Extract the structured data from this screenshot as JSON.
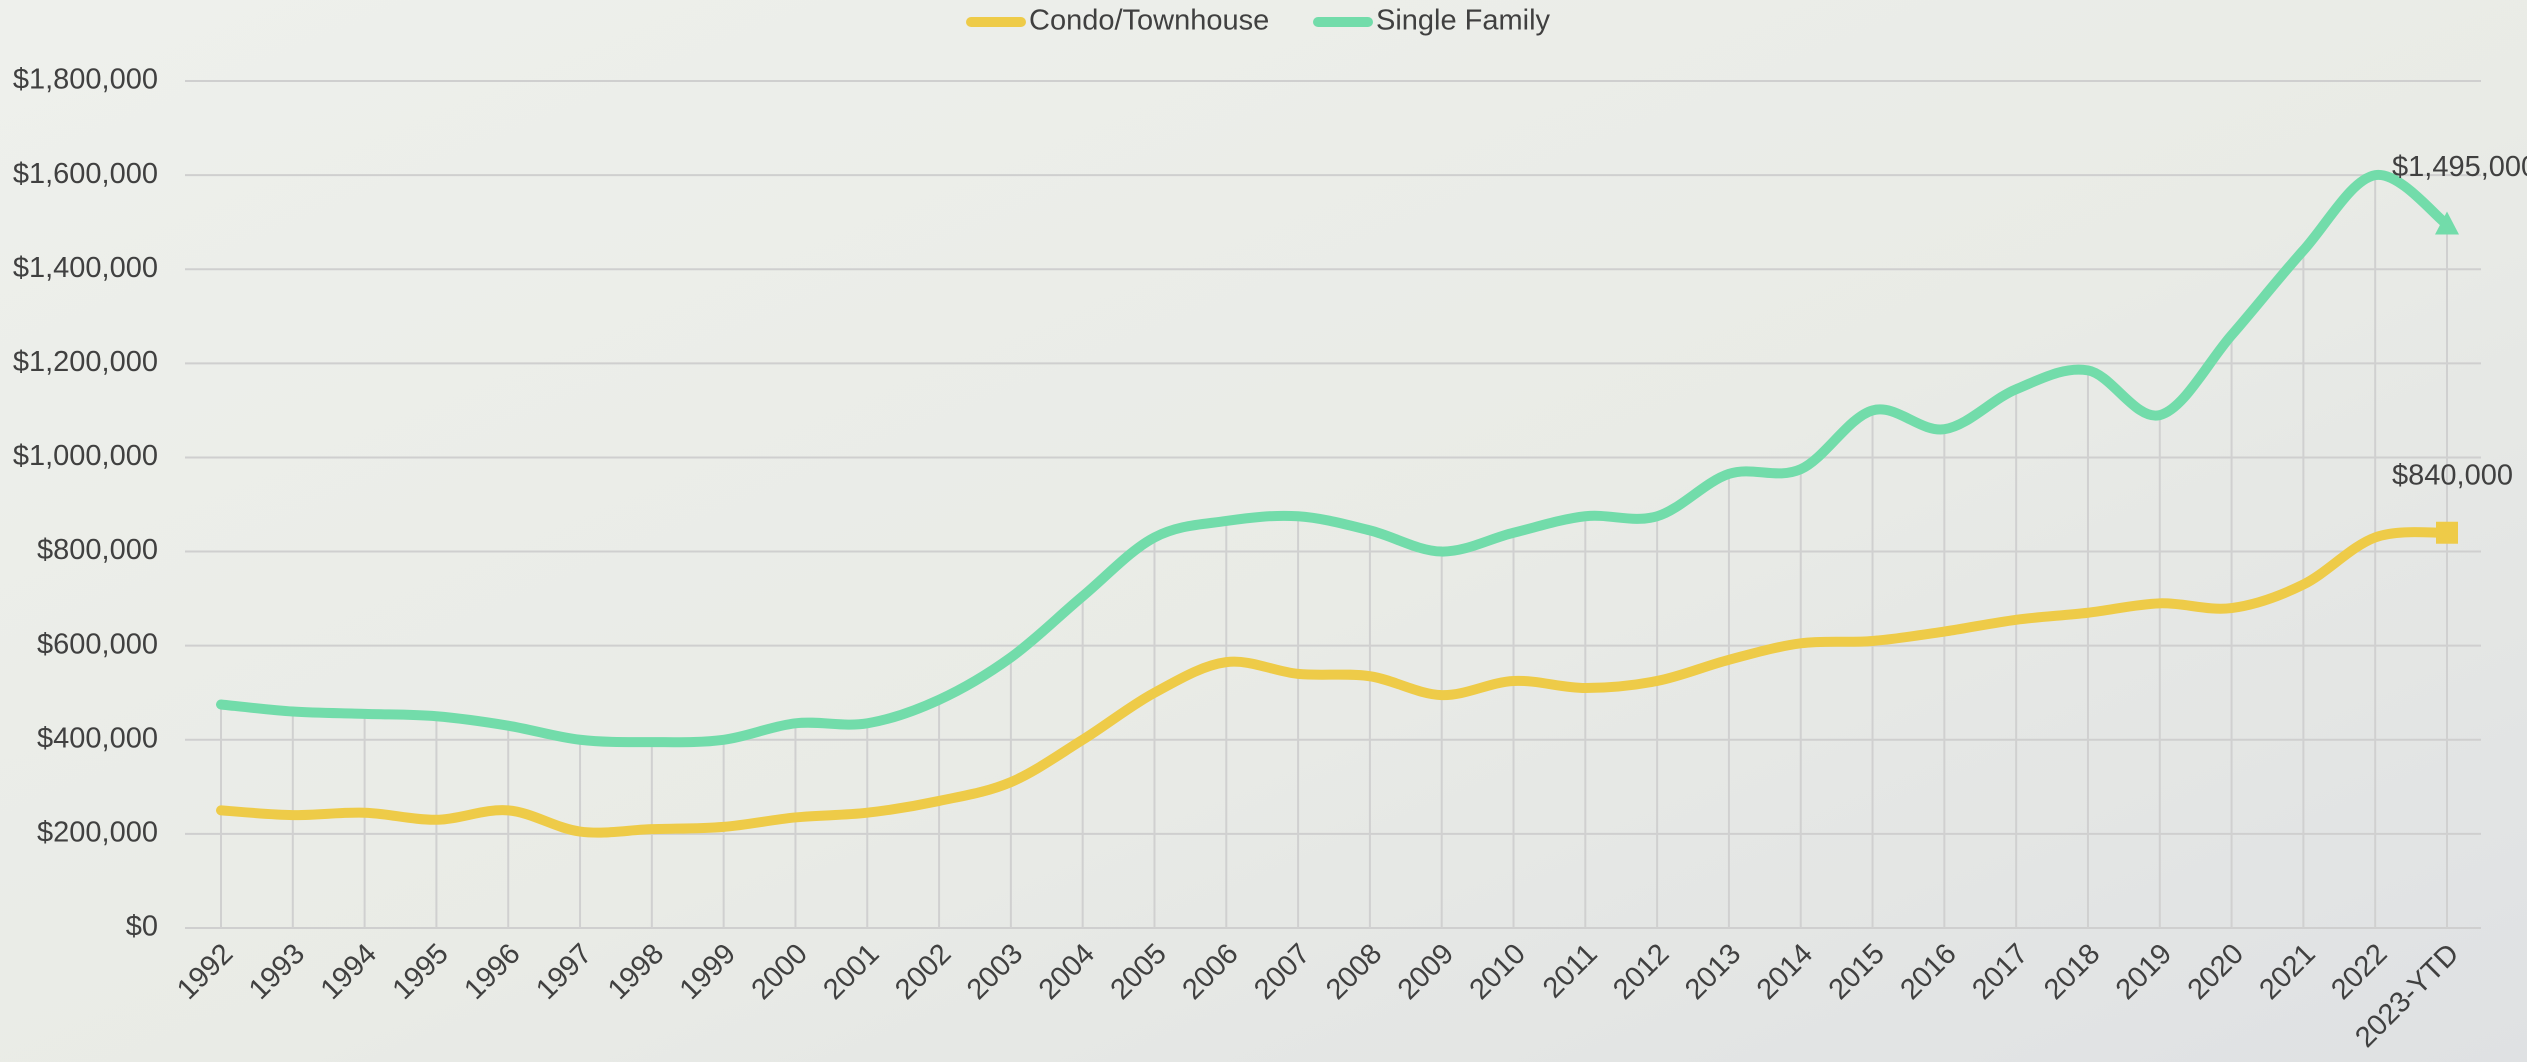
{
  "chart_data": {
    "type": "line",
    "categories": [
      "1992",
      "1993",
      "1994",
      "1995",
      "1996",
      "1997",
      "1998",
      "1999",
      "2000",
      "2001",
      "2002",
      "2003",
      "2004",
      "2005",
      "2006",
      "2007",
      "2008",
      "2009",
      "2010",
      "2011",
      "2012",
      "2013",
      "2014",
      "2015",
      "2016",
      "2017",
      "2018",
      "2019",
      "2020",
      "2021",
      "2022",
      "2023-YTD"
    ],
    "series": [
      {
        "name": "Condo/Townhouse",
        "color": "#eecb48",
        "marker": "square",
        "values": [
          250000,
          240000,
          245000,
          230000,
          250000,
          205000,
          210000,
          215000,
          235000,
          245000,
          270000,
          310000,
          400000,
          500000,
          565000,
          540000,
          535000,
          495000,
          525000,
          510000,
          525000,
          570000,
          605000,
          610000,
          630000,
          655000,
          670000,
          690000,
          680000,
          730000,
          830000,
          840000
        ],
        "value_labels": [
          null,
          null,
          null,
          null,
          null,
          null,
          null,
          null,
          null,
          null,
          null,
          null,
          null,
          null,
          null,
          null,
          null,
          null,
          null,
          null,
          null,
          null,
          null,
          null,
          null,
          null,
          null,
          null,
          null,
          null,
          null,
          "$840,000"
        ]
      },
      {
        "name": "Single Family",
        "color": "#72dcaa",
        "marker": "triangle",
        "values": [
          475000,
          460000,
          455000,
          450000,
          430000,
          400000,
          395000,
          400000,
          435000,
          435000,
          485000,
          575000,
          705000,
          830000,
          865000,
          875000,
          845000,
          800000,
          840000,
          875000,
          875000,
          965000,
          975000,
          1100000,
          1060000,
          1145000,
          1185000,
          1090000,
          1260000,
          1440000,
          1600000,
          1495000
        ],
        "value_labels": [
          null,
          null,
          null,
          null,
          null,
          null,
          null,
          null,
          null,
          null,
          null,
          null,
          null,
          null,
          null,
          null,
          null,
          null,
          null,
          null,
          null,
          null,
          null,
          null,
          null,
          null,
          null,
          null,
          null,
          null,
          null,
          "$1,495,000"
        ]
      }
    ],
    "ylim": [
      0,
      1800000
    ],
    "yticks": [
      {
        "value": 0,
        "label": "$0"
      },
      {
        "value": 200000,
        "label": "$200,000"
      },
      {
        "value": 400000,
        "label": "$400,000"
      },
      {
        "value": 600000,
        "label": "$600,000"
      },
      {
        "value": 800000,
        "label": "$800,000"
      },
      {
        "value": 1000000,
        "label": "$1,000,000"
      },
      {
        "value": 1200000,
        "label": "$1,200,000"
      },
      {
        "value": 1400000,
        "label": "$1,400,000"
      },
      {
        "value": 1600000,
        "label": "$1,600,000"
      },
      {
        "value": 1800000,
        "label": "$1,800,000"
      }
    ],
    "grid": true,
    "smooth": true,
    "legend": "top"
  }
}
